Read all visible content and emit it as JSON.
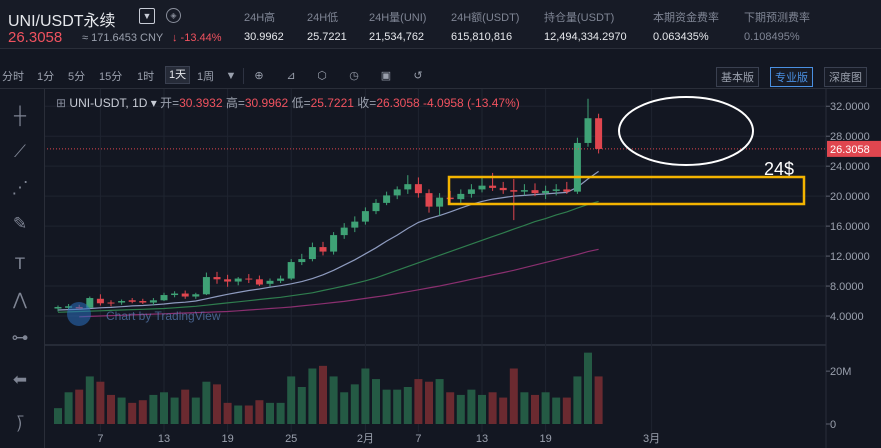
{
  "header": {
    "symbol": "UNI/USDT永续",
    "dropdown_icon": "chevron-down-icon",
    "share_icon": "compass-icon",
    "last_price": "26.3058",
    "cny_price": "≈ 171.6453 CNY",
    "change_pct": "↓ -13.44%",
    "stats": [
      {
        "label": "24H高",
        "value": "30.9962"
      },
      {
        "label": "24H低",
        "value": "25.7221"
      },
      {
        "label": "24H量(UNI)",
        "value": "21,534,762"
      },
      {
        "label": "24H额(USDT)",
        "value": "615,810,816"
      },
      {
        "label": "持仓量(USDT)",
        "value": "12,494,334.2970"
      },
      {
        "label": "本期资金费率",
        "value": "0.063435%"
      },
      {
        "label": "下期预测费率",
        "value": "0.108495%"
      }
    ]
  },
  "toolbar": {
    "timeframes": [
      "分时",
      "1分",
      "5分",
      "15分",
      "1时",
      "1天",
      "1周"
    ],
    "active_timeframe": "1天",
    "view_buttons": [
      "基本版",
      "专业版",
      "深度图"
    ],
    "active_view": "专业版"
  },
  "legend": {
    "symbol": "UNI-USDT, 1D",
    "open_label": "开=",
    "open": "30.3932",
    "high_label": "高=",
    "high": "30.9962",
    "low_label": "低=",
    "low": "25.7221",
    "close_label": "收=",
    "close": "26.3058",
    "change": "-4.0958 (-13.47%)"
  },
  "watermark": "Chart by TradingView",
  "annotation_text": "24$",
  "colors": {
    "up": "#3fa276",
    "down": "#e0464f",
    "up_vol": "#245a44",
    "down_vol": "#6b2a30",
    "ma_light": "#8e9bbf",
    "ma_green": "#2f7d4e",
    "ma_purple": "#8a2f6f",
    "annot_ellipse": "#ffffff",
    "annot_box": "#f4b400",
    "last_price_line": "#e0464f"
  },
  "chart_data": {
    "type": "candlestick",
    "pair": "UNI-USDT",
    "interval": "1D",
    "y_ticks": [
      "32.0000",
      "28.0000",
      "24.0000",
      "20.0000",
      "16.0000",
      "12.0000",
      "8.0000",
      "4.0000"
    ],
    "ylim": [
      2.0,
      33.5
    ],
    "last_price": 26.3058,
    "x_tick_labels": [
      {
        "label": "7",
        "index": 4
      },
      {
        "label": "13",
        "index": 10
      },
      {
        "label": "19",
        "index": 16
      },
      {
        "label": "25",
        "index": 22
      },
      {
        "label": "2月",
        "index": 29
      },
      {
        "label": "7",
        "index": 34
      },
      {
        "label": "13",
        "index": 40
      },
      {
        "label": "19",
        "index": 46
      },
      {
        "label": "3月",
        "index": 56
      }
    ],
    "volume_ticks": [
      "20M",
      "0"
    ],
    "volume_max": 28,
    "candles": [
      {
        "o": 5.0,
        "h": 5.4,
        "l": 4.6,
        "c": 5.2,
        "v": 6
      },
      {
        "o": 5.1,
        "h": 5.6,
        "l": 4.9,
        "c": 5.3,
        "v": 12
      },
      {
        "o": 5.2,
        "h": 5.5,
        "l": 4.9,
        "c": 5.0,
        "v": 13
      },
      {
        "o": 5.1,
        "h": 6.6,
        "l": 5.0,
        "c": 6.4,
        "v": 18
      },
      {
        "o": 6.3,
        "h": 6.9,
        "l": 5.4,
        "c": 5.7,
        "v": 16
      },
      {
        "o": 5.8,
        "h": 6.1,
        "l": 5.3,
        "c": 5.7,
        "v": 11
      },
      {
        "o": 5.8,
        "h": 6.2,
        "l": 5.5,
        "c": 6.0,
        "v": 10
      },
      {
        "o": 6.1,
        "h": 6.4,
        "l": 5.7,
        "c": 5.9,
        "v": 8
      },
      {
        "o": 6.0,
        "h": 6.3,
        "l": 5.6,
        "c": 5.8,
        "v": 9
      },
      {
        "o": 5.8,
        "h": 6.4,
        "l": 5.4,
        "c": 6.1,
        "v": 11
      },
      {
        "o": 6.1,
        "h": 7.1,
        "l": 6.0,
        "c": 6.8,
        "v": 12
      },
      {
        "o": 6.8,
        "h": 7.3,
        "l": 6.5,
        "c": 7.0,
        "v": 10
      },
      {
        "o": 7.0,
        "h": 7.4,
        "l": 6.3,
        "c": 6.6,
        "v": 13
      },
      {
        "o": 6.6,
        "h": 7.1,
        "l": 6.3,
        "c": 6.9,
        "v": 10
      },
      {
        "o": 6.9,
        "h": 9.8,
        "l": 6.8,
        "c": 9.2,
        "v": 16
      },
      {
        "o": 9.2,
        "h": 9.9,
        "l": 8.3,
        "c": 8.9,
        "v": 15
      },
      {
        "o": 8.9,
        "h": 9.5,
        "l": 7.9,
        "c": 8.6,
        "v": 8
      },
      {
        "o": 8.6,
        "h": 9.2,
        "l": 8.1,
        "c": 9.0,
        "v": 7
      },
      {
        "o": 9.0,
        "h": 9.6,
        "l": 8.4,
        "c": 8.9,
        "v": 7
      },
      {
        "o": 8.9,
        "h": 9.4,
        "l": 8.0,
        "c": 8.2,
        "v": 9
      },
      {
        "o": 8.3,
        "h": 9.0,
        "l": 7.9,
        "c": 8.7,
        "v": 8
      },
      {
        "o": 8.7,
        "h": 9.4,
        "l": 8.4,
        "c": 9.0,
        "v": 8
      },
      {
        "o": 9.0,
        "h": 11.6,
        "l": 8.8,
        "c": 11.2,
        "v": 18
      },
      {
        "o": 11.2,
        "h": 12.3,
        "l": 10.8,
        "c": 11.6,
        "v": 14
      },
      {
        "o": 11.6,
        "h": 13.8,
        "l": 11.3,
        "c": 13.2,
        "v": 21
      },
      {
        "o": 13.2,
        "h": 13.9,
        "l": 12.1,
        "c": 12.6,
        "v": 22
      },
      {
        "o": 12.6,
        "h": 15.2,
        "l": 12.2,
        "c": 14.8,
        "v": 18
      },
      {
        "o": 14.8,
        "h": 16.4,
        "l": 14.3,
        "c": 15.8,
        "v": 12
      },
      {
        "o": 15.8,
        "h": 17.3,
        "l": 15.2,
        "c": 16.6,
        "v": 15
      },
      {
        "o": 16.6,
        "h": 18.5,
        "l": 16.2,
        "c": 18.0,
        "v": 21
      },
      {
        "o": 18.0,
        "h": 19.6,
        "l": 17.6,
        "c": 19.1,
        "v": 17
      },
      {
        "o": 19.1,
        "h": 20.6,
        "l": 18.8,
        "c": 20.1,
        "v": 13
      },
      {
        "o": 20.1,
        "h": 21.3,
        "l": 19.6,
        "c": 20.9,
        "v": 13
      },
      {
        "o": 20.9,
        "h": 22.8,
        "l": 20.3,
        "c": 21.6,
        "v": 14
      },
      {
        "o": 21.6,
        "h": 22.5,
        "l": 19.8,
        "c": 20.4,
        "v": 17
      },
      {
        "o": 20.4,
        "h": 20.9,
        "l": 17.8,
        "c": 18.6,
        "v": 16
      },
      {
        "o": 18.6,
        "h": 20.4,
        "l": 17.4,
        "c": 19.8,
        "v": 17
      },
      {
        "o": 19.8,
        "h": 20.7,
        "l": 18.9,
        "c": 19.6,
        "v": 12
      },
      {
        "o": 19.6,
        "h": 20.9,
        "l": 19.1,
        "c": 20.3,
        "v": 11
      },
      {
        "o": 20.3,
        "h": 21.6,
        "l": 19.8,
        "c": 20.9,
        "v": 13
      },
      {
        "o": 20.9,
        "h": 22.5,
        "l": 20.5,
        "c": 21.4,
        "v": 11
      },
      {
        "o": 21.4,
        "h": 23.1,
        "l": 20.7,
        "c": 21.1,
        "v": 12
      },
      {
        "o": 21.1,
        "h": 21.9,
        "l": 20.3,
        "c": 20.8,
        "v": 10
      },
      {
        "o": 20.8,
        "h": 22.3,
        "l": 16.8,
        "c": 20.6,
        "v": 21
      },
      {
        "o": 20.6,
        "h": 21.6,
        "l": 20.1,
        "c": 20.8,
        "v": 12
      },
      {
        "o": 20.8,
        "h": 21.7,
        "l": 20.0,
        "c": 20.4,
        "v": 11
      },
      {
        "o": 20.4,
        "h": 21.4,
        "l": 19.6,
        "c": 20.7,
        "v": 12
      },
      {
        "o": 20.7,
        "h": 21.6,
        "l": 20.1,
        "c": 20.9,
        "v": 10
      },
      {
        "o": 20.9,
        "h": 21.9,
        "l": 20.3,
        "c": 20.6,
        "v": 10
      },
      {
        "o": 20.6,
        "h": 27.8,
        "l": 20.3,
        "c": 27.1,
        "v": 18
      },
      {
        "o": 27.1,
        "h": 33.0,
        "l": 26.6,
        "c": 30.4,
        "v": 27
      },
      {
        "o": 30.4,
        "h": 31.0,
        "l": 25.7,
        "c": 26.3,
        "v": 18
      }
    ],
    "ma_series": [
      {
        "start": 0,
        "values": [
          4.8,
          4.85,
          4.9,
          5.0,
          5.1,
          5.15,
          5.25,
          5.35,
          5.4,
          5.5,
          5.6,
          5.75,
          5.85,
          6.0,
          6.3,
          6.6,
          6.9,
          7.15,
          7.4,
          7.6,
          7.85,
          8.05,
          8.3,
          8.6,
          9.0,
          9.5,
          10.1,
          10.8,
          11.5,
          12.3,
          13.1,
          14.0,
          14.8,
          15.7,
          16.5,
          17.0,
          17.4,
          17.9,
          18.4,
          18.9,
          19.3,
          19.6,
          19.8,
          20.0,
          20.1,
          20.2,
          20.3,
          20.4,
          20.5,
          21.2,
          22.3,
          23.3
        ]
      },
      {
        "start": 0,
        "values": [
          4.5,
          4.55,
          4.6,
          4.65,
          4.7,
          4.75,
          4.8,
          4.85,
          4.9,
          4.95,
          5.0,
          5.1,
          5.2,
          5.3,
          5.45,
          5.6,
          5.75,
          5.9,
          6.05,
          6.2,
          6.35,
          6.5,
          6.7,
          6.9,
          7.1,
          7.4,
          7.7,
          8.0,
          8.35,
          8.7,
          9.1,
          9.6,
          10.1,
          10.6,
          11.1,
          11.6,
          12.1,
          12.6,
          13.1,
          13.6,
          14.1,
          14.6,
          15.1,
          15.6,
          16.1,
          16.6,
          17.0,
          17.5,
          17.9,
          18.4,
          18.9,
          19.3
        ]
      },
      {
        "start": 2,
        "values": [
          3.9,
          3.95,
          4.0,
          4.05,
          4.1,
          4.15,
          4.2,
          4.25,
          4.3,
          4.35,
          4.4,
          4.45,
          4.5,
          4.55,
          4.6,
          4.7,
          4.8,
          4.9,
          5.0,
          5.1,
          5.2,
          5.35,
          5.5,
          5.65,
          5.8,
          5.95,
          6.15,
          6.35,
          6.55,
          6.75,
          7.0,
          7.25,
          7.5,
          7.75,
          8.0,
          8.3,
          8.6,
          8.9,
          9.2,
          9.5,
          9.8,
          10.1,
          10.45,
          10.8,
          11.15,
          11.5,
          11.85,
          12.2,
          12.6,
          12.9
        ]
      }
    ]
  }
}
